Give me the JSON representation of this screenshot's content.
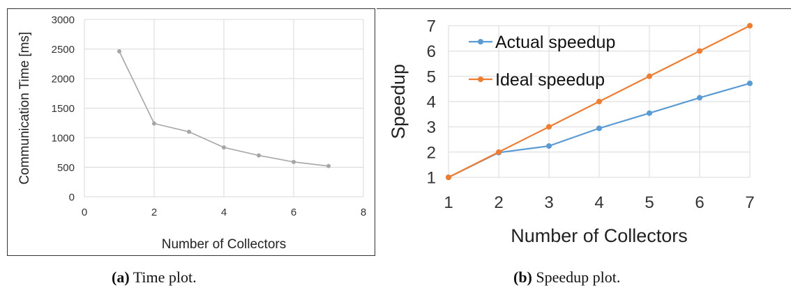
{
  "chart_data": [
    {
      "type": "line",
      "title": "",
      "xlabel": "Number of Collectors",
      "ylabel": "Communication Time [ms]",
      "xlim": [
        0,
        8
      ],
      "ylim": [
        0,
        3000
      ],
      "xticks": [
        0,
        2,
        4,
        6,
        8
      ],
      "yticks": [
        0,
        500,
        1000,
        1500,
        2000,
        2500,
        3000
      ],
      "grid": true,
      "series": [
        {
          "color": "#a5a5a5",
          "x": [
            1,
            2,
            3,
            4,
            5,
            6,
            7
          ],
          "y": [
            2460,
            1240,
            1100,
            835,
            700,
            590,
            520
          ]
        }
      ]
    },
    {
      "type": "line",
      "title": "",
      "xlabel": "Number of Collectors",
      "ylabel": "Speedup",
      "xlim": [
        1,
        7
      ],
      "ylim": [
        1,
        7
      ],
      "xticks": [
        1,
        2,
        3,
        4,
        5,
        6,
        7
      ],
      "yticks": [
        1,
        2,
        3,
        4,
        5,
        6,
        7
      ],
      "grid": true,
      "legend": "top-left",
      "series": [
        {
          "name": "Actual speedup",
          "color": "#5b9bd5",
          "x": [
            1,
            2,
            3,
            4,
            5,
            6,
            7
          ],
          "y": [
            1,
            1.98,
            2.24,
            2.94,
            3.54,
            4.15,
            4.72
          ]
        },
        {
          "name": "Ideal speedup",
          "color": "#ed7d31",
          "x": [
            1,
            2,
            3,
            4,
            5,
            6,
            7
          ],
          "y": [
            1,
            2,
            3,
            4,
            5,
            6,
            7
          ]
        }
      ]
    }
  ],
  "captions": {
    "a_label": "(a)",
    "a_text": " Time plot.",
    "b_label": "(b)",
    "b_text": " Speedup plot."
  }
}
